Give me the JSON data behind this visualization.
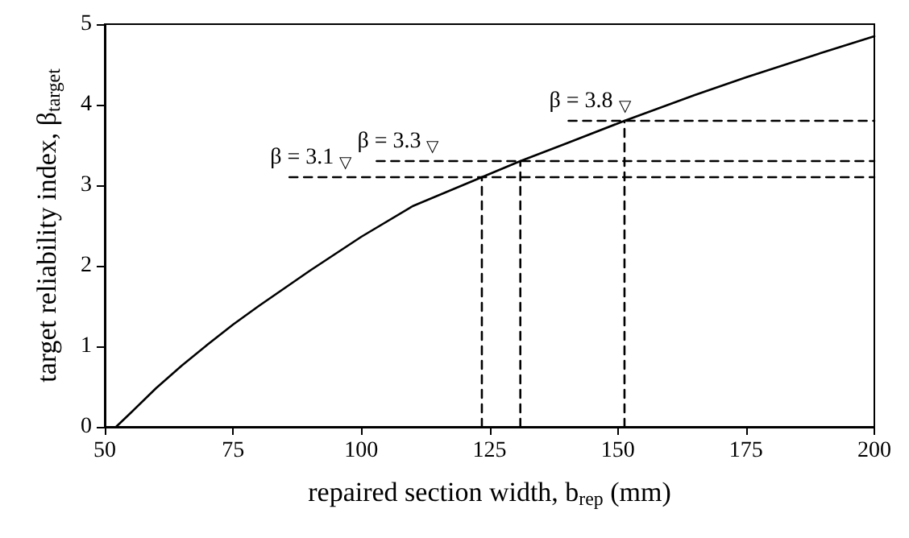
{
  "chart_data": {
    "type": "line",
    "xlabel": "repaired section width, b$_{rep}$ (mm)",
    "ylabel": "target reliability index, β$_{target}$",
    "xlim": [
      50,
      200
    ],
    "xticks": [
      50,
      75,
      100,
      125,
      150,
      175,
      200
    ],
    "ylim": [
      0,
      5
    ],
    "yticks": [
      0,
      1,
      2,
      3,
      4,
      5
    ],
    "marker": "none",
    "series": [
      {
        "color": "#000000",
        "line_style": "solid",
        "x": [
          52.2,
          55,
          60,
          65,
          70,
          75,
          80,
          90,
          100,
          110,
          123.5,
          131,
          140,
          151.3,
          165,
          175,
          190,
          200
        ],
        "values": [
          0,
          0.17,
          0.48,
          0.76,
          1.02,
          1.27,
          1.5,
          1.94,
          2.36,
          2.74,
          3.1,
          3.3,
          3.52,
          3.8,
          4.12,
          4.34,
          4.65,
          4.85
        ]
      },
      {
        "color": "#000000",
        "line_style": "dashed",
        "x": [
          86,
          200
        ],
        "values": [
          3.1,
          3.1
        ]
      },
      {
        "color": "#000000",
        "line_style": "dashed",
        "x": [
          103,
          200
        ],
        "values": [
          3.3,
          3.3
        ]
      },
      {
        "color": "#000000",
        "line_style": "dashed",
        "x": [
          140.4,
          200
        ],
        "values": [
          3.8,
          3.8
        ]
      },
      {
        "color": "#000000",
        "line_style": "dashed",
        "x": [
          123.5,
          123.5
        ],
        "values": [
          0,
          3.1
        ]
      },
      {
        "color": "#000000",
        "line_style": "dashed",
        "x": [
          131,
          131
        ],
        "values": [
          0,
          3.3
        ]
      },
      {
        "color": "#000000",
        "line_style": "dashed",
        "x": [
          151.3,
          151.3
        ],
        "values": [
          0,
          3.8
        ]
      }
    ],
    "annotations": [
      "β = 3.1 $_{▽}$",
      "β = 3.3 $_{▽}$",
      "β = 3.8 $_{▽}$"
    ]
  }
}
